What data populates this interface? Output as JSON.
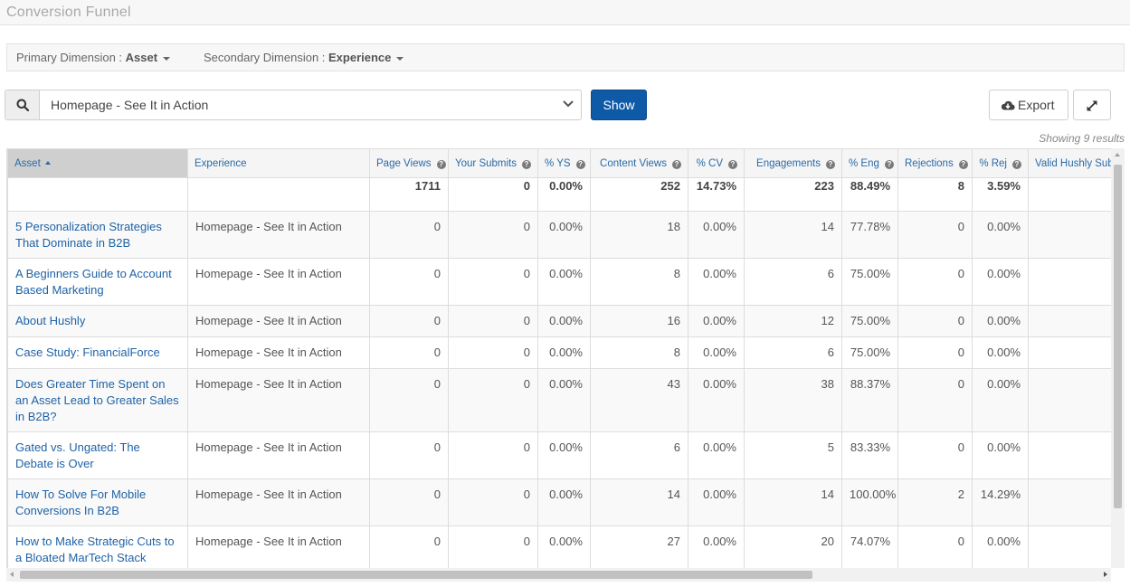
{
  "page": {
    "title": "Conversion Funnel"
  },
  "dimensions": {
    "primary_label": "Primary Dimension : ",
    "primary_value": "Asset",
    "secondary_label": "Secondary Dimension : ",
    "secondary_value": "Experience"
  },
  "filter": {
    "selected": "Homepage - See It in Action"
  },
  "toolbar": {
    "show_label": "Show",
    "export_label": "Export"
  },
  "results": {
    "count_text": "Showing 9 results"
  },
  "table": {
    "columns": {
      "asset": "Asset",
      "experience": "Experience",
      "page_views": "Page Views",
      "your_submits": "Your Submits",
      "pct_ys": "% YS",
      "content_views": "Content Views",
      "pct_cv": "% CV",
      "engagements": "Engagements",
      "pct_eng": "% Eng",
      "rejections": "Rejections",
      "pct_rej": "% Rej",
      "valid_hushly": "Valid Hushly Sub"
    },
    "totals": {
      "page_views": "1711",
      "your_submits": "0",
      "pct_ys": "0.00%",
      "content_views": "252",
      "pct_cv": "14.73%",
      "engagements": "223",
      "pct_eng": "88.49%",
      "rejections": "8",
      "pct_rej": "3.59%"
    },
    "rows": [
      {
        "asset": "5 Personalization Strategies That Dominate in B2B",
        "experience": "Homepage - See It in Action",
        "page_views": "0",
        "your_submits": "0",
        "pct_ys": "0.00%",
        "content_views": "18",
        "pct_cv": "0.00%",
        "engagements": "14",
        "pct_eng": "77.78%",
        "rejections": "0",
        "pct_rej": "0.00%"
      },
      {
        "asset": "A Beginners Guide to Account Based Marketing",
        "experience": "Homepage - See It in Action",
        "page_views": "0",
        "your_submits": "0",
        "pct_ys": "0.00%",
        "content_views": "8",
        "pct_cv": "0.00%",
        "engagements": "6",
        "pct_eng": "75.00%",
        "rejections": "0",
        "pct_rej": "0.00%"
      },
      {
        "asset": "About Hushly",
        "experience": "Homepage - See It in Action",
        "page_views": "0",
        "your_submits": "0",
        "pct_ys": "0.00%",
        "content_views": "16",
        "pct_cv": "0.00%",
        "engagements": "12",
        "pct_eng": "75.00%",
        "rejections": "0",
        "pct_rej": "0.00%"
      },
      {
        "asset": "Case Study: FinancialForce",
        "experience": "Homepage - See It in Action",
        "page_views": "0",
        "your_submits": "0",
        "pct_ys": "0.00%",
        "content_views": "8",
        "pct_cv": "0.00%",
        "engagements": "6",
        "pct_eng": "75.00%",
        "rejections": "0",
        "pct_rej": "0.00%"
      },
      {
        "asset": "Does Greater Time Spent on an Asset Lead to Greater Sales in B2B?",
        "experience": "Homepage - See It in Action",
        "page_views": "0",
        "your_submits": "0",
        "pct_ys": "0.00%",
        "content_views": "43",
        "pct_cv": "0.00%",
        "engagements": "38",
        "pct_eng": "88.37%",
        "rejections": "0",
        "pct_rej": "0.00%"
      },
      {
        "asset": "Gated vs. Ungated: The Debate is Over",
        "experience": "Homepage - See It in Action",
        "page_views": "0",
        "your_submits": "0",
        "pct_ys": "0.00%",
        "content_views": "6",
        "pct_cv": "0.00%",
        "engagements": "5",
        "pct_eng": "83.33%",
        "rejections": "0",
        "pct_rej": "0.00%"
      },
      {
        "asset": "How To Solve For Mobile Conversions In B2B",
        "experience": "Homepage - See It in Action",
        "page_views": "0",
        "your_submits": "0",
        "pct_ys": "0.00%",
        "content_views": "14",
        "pct_cv": "0.00%",
        "engagements": "14",
        "pct_eng": "100.00%",
        "rejections": "2",
        "pct_rej": "14.29%"
      },
      {
        "asset": "How to Make Strategic Cuts to a Bloated MarTech Stack",
        "experience": "Homepage - See It in Action",
        "page_views": "0",
        "your_submits": "0",
        "pct_ys": "0.00%",
        "content_views": "27",
        "pct_cv": "0.00%",
        "engagements": "20",
        "pct_eng": "74.07%",
        "rejections": "0",
        "pct_rej": "0.00%"
      }
    ]
  }
}
